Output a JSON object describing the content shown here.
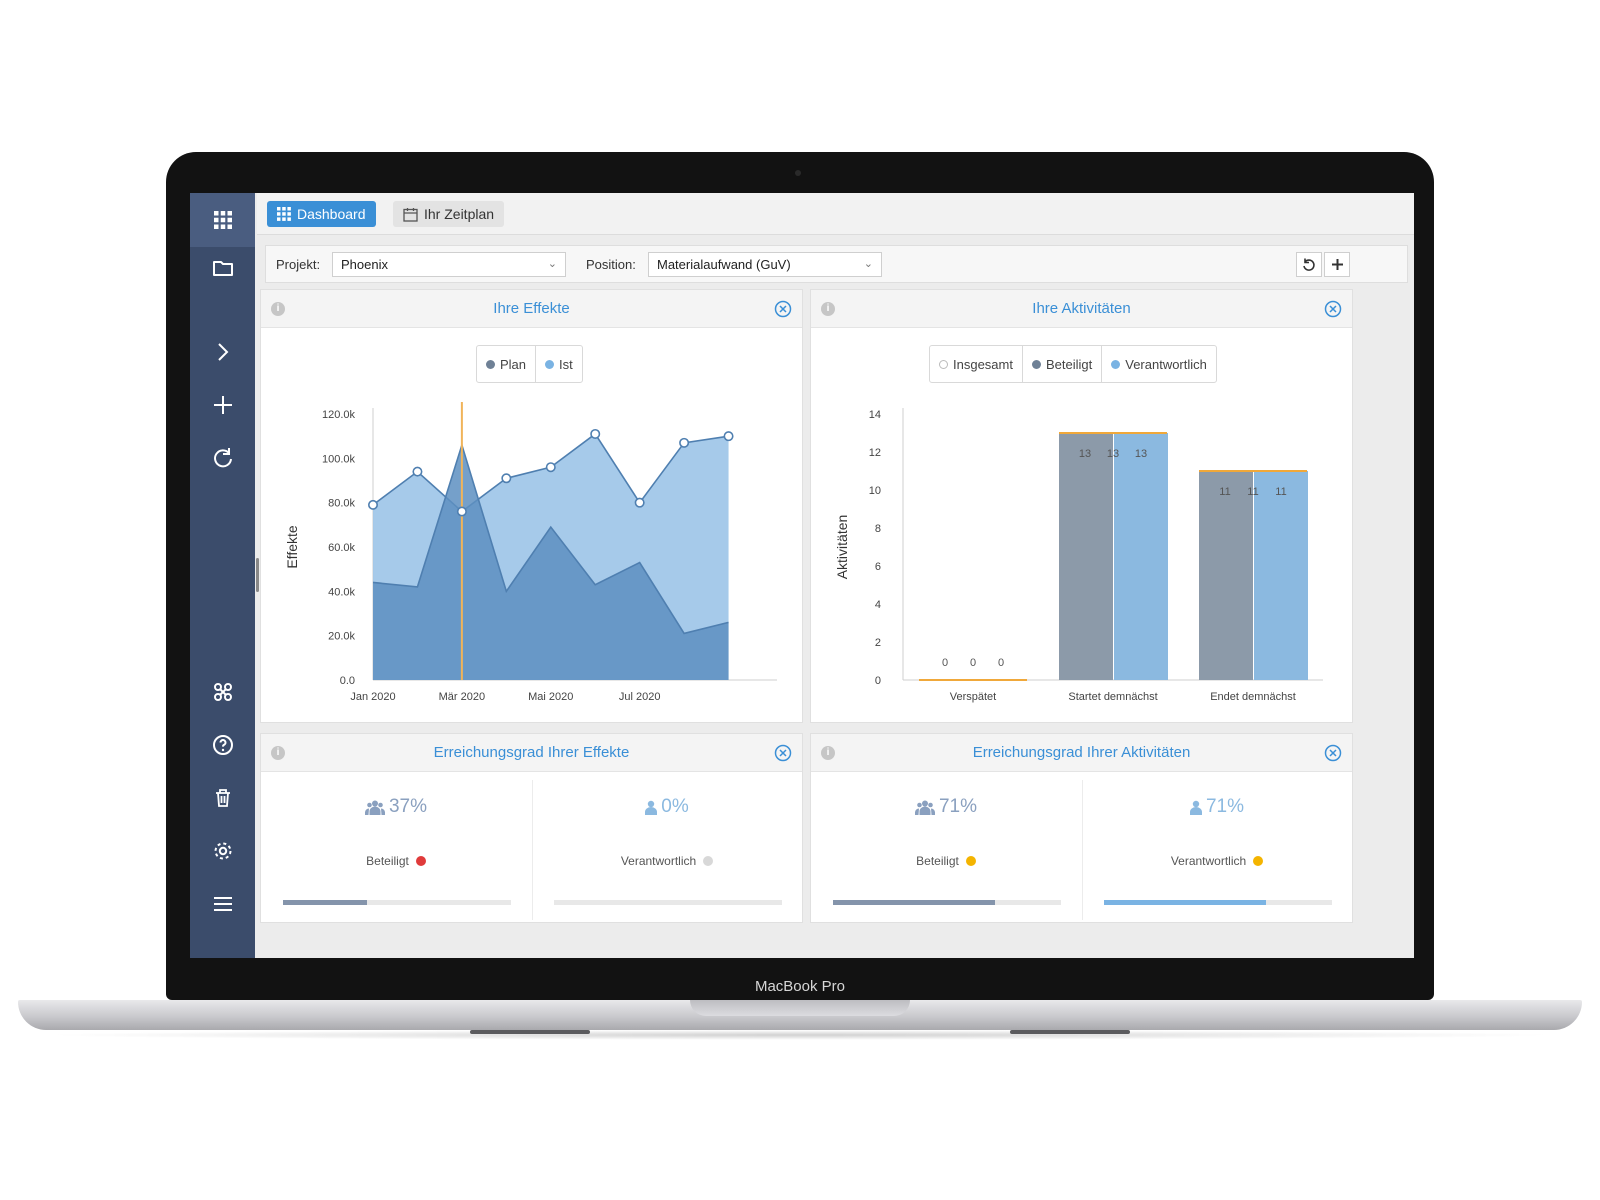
{
  "device": {
    "brand": "MacBook Pro"
  },
  "tabs": {
    "dashboard": "Dashboard",
    "schedule": "Ihr Zeitplan"
  },
  "filters": {
    "project_label": "Projekt:",
    "project_value": "Phoenix",
    "position_label": "Position:",
    "position_value": "Materialaufwand (GuV)"
  },
  "panels": {
    "effects": {
      "title": "Ihre Effekte",
      "legend": [
        "Plan",
        "Ist"
      ]
    },
    "activities": {
      "title": "Ihre Aktivitäten",
      "legend": [
        "Insgesamt",
        "Beteiligt",
        "Verantwortlich"
      ]
    },
    "effects_progress": {
      "title": "Erreichungsgrad Ihrer Effekte",
      "involved_value": "37%",
      "involved_label": "Beteiligt",
      "involved_progress": 0.37,
      "responsible_value": "0%",
      "responsible_label": "Verantwortlich",
      "responsible_progress": 0.0
    },
    "activities_progress": {
      "title": "Erreichungsgrad Ihrer Aktivitäten",
      "involved_value": "71%",
      "involved_label": "Beteiligt",
      "involved_progress": 0.71,
      "responsible_value": "71%",
      "responsible_label": "Verantwortlich",
      "responsible_progress": 0.71
    }
  },
  "colors": {
    "accent": "#3a8fd6",
    "sidebar": "#3b4c6b",
    "plan": "#6a9ac7",
    "ist": "#9cc4e8",
    "beteiligt": "#8c9aa9",
    "verantwortlich": "#8bb9e0",
    "status_red": "#e03b3b",
    "status_grey": "#d8d8d8",
    "status_yellow": "#f4b400"
  },
  "chart_data": [
    {
      "type": "area",
      "ylabel": "Effekte",
      "ylim": [
        0,
        120000
      ],
      "yticks": [
        "0.0",
        "20.0k",
        "40.0k",
        "60.0k",
        "80.0k",
        "100.0k",
        "120.0k"
      ],
      "xticks": [
        "Jan 2020",
        "Mär 2020",
        "Mai 2020",
        "Jul 2020"
      ],
      "grid": false,
      "legend": "top-center",
      "x": [
        "2020-01",
        "2020-02",
        "2020-03",
        "2020-04",
        "2020-05",
        "2020-06",
        "2020-07",
        "2020-08",
        "2020-09",
        "2020-10"
      ],
      "series": [
        {
          "name": "Plan",
          "values": [
            44000,
            42000,
            106000,
            40000,
            69000,
            43000,
            53000,
            21000,
            26000,
            null
          ]
        },
        {
          "name": "Ist",
          "values": [
            79000,
            94000,
            76000,
            91000,
            96000,
            111000,
            80000,
            107000,
            110000,
            null
          ]
        }
      ]
    },
    {
      "type": "bar",
      "ylabel": "Aktivitäten",
      "ylim": [
        0,
        14
      ],
      "yticks": [
        "0",
        "2",
        "4",
        "6",
        "8",
        "10",
        "12",
        "14"
      ],
      "categories": [
        "Verspätet",
        "Startet demnächst",
        "Endet demnächst"
      ],
      "grid": false,
      "legend": "top-center",
      "series": [
        {
          "name": "Insgesamt",
          "values": [
            0,
            13,
            11
          ]
        },
        {
          "name": "Beteiligt",
          "values": [
            0,
            13,
            11
          ]
        },
        {
          "name": "Verantwortlich",
          "values": [
            0,
            13,
            11
          ]
        }
      ]
    }
  ]
}
